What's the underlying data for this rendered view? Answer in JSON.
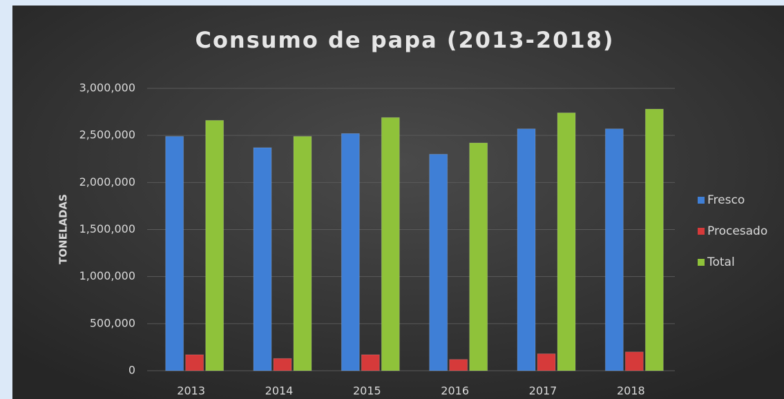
{
  "chart_data": {
    "type": "bar",
    "title": "Consumo de papa (2013-2018)",
    "y_label": "TONELADAS",
    "categories": [
      "2013",
      "2014",
      "2015",
      "2016",
      "2017",
      "2018"
    ],
    "series": [
      {
        "name": "Fresco",
        "color": "#3f7fd6",
        "values": [
          2490000,
          2370000,
          2520000,
          2300000,
          2570000,
          2570000
        ]
      },
      {
        "name": "Procesado",
        "color": "#d63a3a",
        "values": [
          170000,
          130000,
          170000,
          120000,
          180000,
          200000
        ]
      },
      {
        "name": "Total",
        "color": "#8fc23a",
        "values": [
          2660000,
          2490000,
          2690000,
          2420000,
          2740000,
          2780000
        ]
      }
    ],
    "ylim": [
      0,
      3000000
    ],
    "yticks": [
      0,
      {
        "value": 500000,
        "label": "500,000"
      },
      {
        "value": 1000000,
        "label": "1,000,000"
      },
      {
        "value": 1500000,
        "label": "1,500,000"
      },
      {
        "value": 2000000,
        "label": "2,000,000"
      },
      {
        "value": 2500000,
        "label": "2,500,000"
      },
      {
        "value": 3000000,
        "label": "3,000,000"
      }
    ],
    "grid": true,
    "legend": "right"
  }
}
